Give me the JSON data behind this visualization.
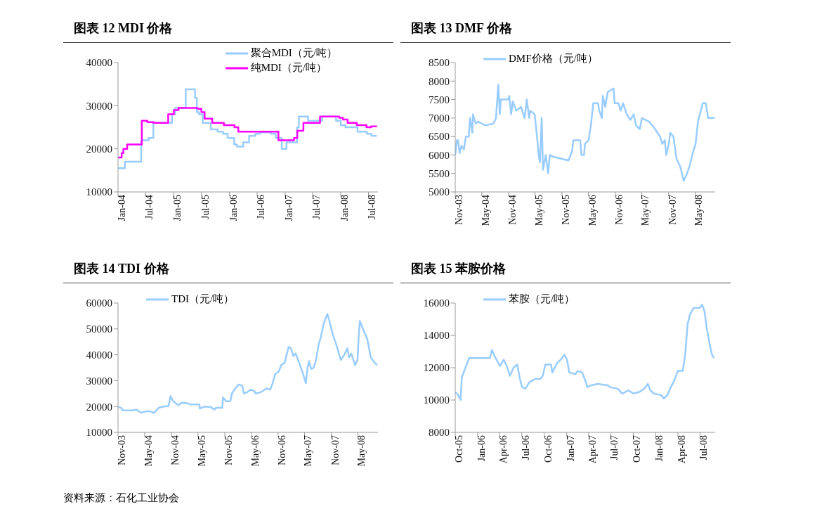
{
  "chart_data": [
    {
      "type": "step",
      "title": "图表 12 MDI 价格",
      "legend": "top right",
      "xlim": [
        "2004-01-01",
        "2008-09-01"
      ],
      "ylim": [
        10000,
        40000
      ],
      "yticks": [
        10000,
        20000,
        30000,
        40000
      ],
      "xticks": [
        {
          "value": "2004-01-01",
          "label": "Jan-04"
        },
        {
          "value": "2004-07-01",
          "label": "Jul-04"
        },
        {
          "value": "2005-01-01",
          "label": "Jan-05"
        },
        {
          "value": "2005-07-01",
          "label": "Jul-05"
        },
        {
          "value": "2006-01-01",
          "label": "Jan-06"
        },
        {
          "value": "2006-07-01",
          "label": "Jul-06"
        },
        {
          "value": "2007-01-01",
          "label": "Jan-07"
        },
        {
          "value": "2007-07-01",
          "label": "Jul-07"
        },
        {
          "value": "2008-01-01",
          "label": "Jan-08"
        },
        {
          "value": "2008-07-01",
          "label": "Jul-08"
        }
      ],
      "series": [
        {
          "name": "聚合MDI（元/吨）",
          "color": "#99ccff",
          "x": [
            "2004-01-01",
            "2004-02-15",
            "2004-06-01",
            "2004-07-20",
            "2004-08-20",
            "2004-12-20",
            "2005-01-10",
            "2005-03-20",
            "2005-05-20",
            "2005-06-01",
            "2005-06-15",
            "2005-07-10",
            "2005-09-01",
            "2005-10-15",
            "2005-11-20",
            "2005-12-20",
            "2006-02-01",
            "2006-02-20",
            "2006-04-01",
            "2006-05-10",
            "2006-06-20",
            "2006-07-20",
            "2006-10-01",
            "2006-11-01",
            "2006-12-10",
            "2007-01-10",
            "2007-03-20",
            "2007-04-01",
            "2007-06-01",
            "2007-09-01",
            "2007-12-01",
            "2008-01-01",
            "2008-02-01",
            "2008-04-20",
            "2008-06-20",
            "2008-07-20",
            "2008-08-25"
          ],
          "values": [
            15500,
            17000,
            22000,
            22500,
            26000,
            28000,
            29500,
            33800,
            31800,
            28500,
            28000,
            26000,
            24500,
            24000,
            23500,
            22500,
            21000,
            20500,
            21500,
            23000,
            23500,
            23800,
            23500,
            22500,
            20000,
            21500,
            25000,
            27500,
            26500,
            27500,
            26500,
            25500,
            25000,
            24000,
            23500,
            23000,
            23000
          ]
        },
        {
          "name": "纯MDI（元/吨）",
          "color": "#ff00ff",
          "x": [
            "2004-01-01",
            "2004-01-25",
            "2004-02-05",
            "2004-03-01",
            "2004-06-05",
            "2004-07-12",
            "2004-08-20",
            "2004-11-25",
            "2005-01-01",
            "2005-02-01",
            "2005-06-05",
            "2005-07-01",
            "2005-07-22",
            "2005-09-10",
            "2005-11-25",
            "2006-02-03",
            "2006-02-28",
            "2006-11-18",
            "2007-02-28",
            "2007-03-22",
            "2007-05-01",
            "2007-08-18",
            "2007-12-22",
            "2008-01-15",
            "2008-02-15",
            "2008-04-15",
            "2008-06-18",
            "2008-07-18",
            "2008-08-25"
          ],
          "values": [
            18000,
            19000,
            20000,
            21000,
            26500,
            26200,
            26000,
            28000,
            29000,
            29500,
            29300,
            28500,
            27000,
            26000,
            25500,
            25000,
            24000,
            22000,
            22500,
            24200,
            26000,
            27500,
            27200,
            26800,
            26000,
            25500,
            25000,
            25200,
            25200
          ]
        }
      ]
    },
    {
      "type": "line",
      "title": "图表 13 DMF 价格",
      "legend": "top left",
      "xlim": [
        "2003-11-01",
        "2008-09-15"
      ],
      "ylim": [
        5000,
        8500
      ],
      "yticks": [
        5000,
        5500,
        6000,
        6500,
        7000,
        7500,
        8000,
        8500
      ],
      "xticks": [
        {
          "value": "2003-11-01",
          "label": "Nov-03"
        },
        {
          "value": "2004-05-01",
          "label": "May-04"
        },
        {
          "value": "2004-11-01",
          "label": "Nov-04"
        },
        {
          "value": "2005-05-01",
          "label": "May-05"
        },
        {
          "value": "2005-11-01",
          "label": "Nov-05"
        },
        {
          "value": "2006-05-01",
          "label": "May-06"
        },
        {
          "value": "2006-11-01",
          "label": "Nov-06"
        },
        {
          "value": "2007-05-01",
          "label": "May-07"
        },
        {
          "value": "2007-11-01",
          "label": "Nov-07"
        },
        {
          "value": "2008-05-01",
          "label": "May-08"
        }
      ],
      "series": [
        {
          "name": "DMF价格（元/吨）",
          "color": "#99ccff",
          "x": [
            "2003-11-01",
            "2003-11-12",
            "2003-11-20",
            "2003-12-01",
            "2003-12-14",
            "2003-12-30",
            "2004-01-13",
            "2004-02-02",
            "2004-02-10",
            "2004-02-26",
            "2004-03-01",
            "2004-03-20",
            "2004-04-06",
            "2004-05-25",
            "2004-07-20",
            "2004-08-06",
            "2004-08-22",
            "2004-09-01",
            "2004-09-08",
            "2004-10-27",
            "2004-11-05",
            "2004-11-18",
            "2004-11-29",
            "2004-12-23",
            "2005-01-25",
            "2005-02-18",
            "2005-03-05",
            "2005-03-21",
            "2005-03-29",
            "2005-04-28",
            "2005-05-14",
            "2005-05-25",
            "2005-06-03",
            "2005-06-15",
            "2005-06-24",
            "2005-07-13",
            "2005-07-29",
            "2005-08-10",
            "2005-09-01",
            "2005-10-28",
            "2005-12-15",
            "2006-01-09",
            "2006-01-18",
            "2006-03-06",
            "2006-03-14",
            "2006-04-01",
            "2006-04-08",
            "2006-05-02",
            "2006-05-18",
            "2006-06-03",
            "2006-07-06",
            "2006-07-14",
            "2006-08-01",
            "2006-08-08",
            "2006-08-24",
            "2006-09-10",
            "2006-10-20",
            "2006-10-28",
            "2006-11-22",
            "2006-12-08",
            "2006-12-24",
            "2007-01-19",
            "2007-02-12",
            "2007-03-07",
            "2007-03-23",
            "2007-04-17",
            "2007-05-03",
            "2007-06-21",
            "2007-07-23",
            "2007-09-03",
            "2007-09-19",
            "2007-10-06",
            "2007-10-16",
            "2007-11-03",
            "2007-11-12",
            "2007-12-04",
            "2007-12-25",
            "2008-01-19",
            "2008-02-12",
            "2008-03-07",
            "2008-03-24",
            "2008-04-18",
            "2008-05-04",
            "2008-05-20",
            "2008-06-22",
            "2008-07-13",
            "2008-07-29",
            "2008-09-12"
          ],
          "values": [
            6000,
            6400,
            6400,
            6050,
            6250,
            6150,
            6500,
            6500,
            7000,
            6600,
            7100,
            6850,
            6900,
            6800,
            6850,
            7000,
            7900,
            7100,
            7500,
            7500,
            7600,
            7100,
            7450,
            7200,
            7300,
            7000,
            7500,
            7000,
            7200,
            7100,
            6500,
            6000,
            5800,
            7000,
            5600,
            6000,
            5500,
            6000,
            5950,
            5900,
            5850,
            6100,
            6400,
            6400,
            6000,
            6000,
            6300,
            6400,
            6800,
            7400,
            7400,
            7200,
            7000,
            7600,
            7300,
            7700,
            7800,
            7400,
            7400,
            7200,
            7400,
            7100,
            6950,
            7100,
            6800,
            6700,
            7000,
            6900,
            6750,
            6500,
            6300,
            6400,
            6000,
            6300,
            6600,
            6500,
            5900,
            5700,
            5300,
            5500,
            5700,
            6100,
            6300,
            6900,
            7400,
            7400,
            7000,
            7000
          ]
        }
      ]
    },
    {
      "type": "line",
      "title": "图表 14 TDI 价格",
      "legend": "top left",
      "xlim": [
        "2003-11-01",
        "2008-09-15"
      ],
      "ylim": [
        10000,
        60000
      ],
      "yticks": [
        10000,
        20000,
        30000,
        40000,
        50000,
        60000
      ],
      "xticks": [
        {
          "value": "2003-11-01",
          "label": "Nov-03"
        },
        {
          "value": "2004-05-01",
          "label": "May-04"
        },
        {
          "value": "2004-11-01",
          "label": "Nov-04"
        },
        {
          "value": "2005-05-01",
          "label": "May-05"
        },
        {
          "value": "2005-11-01",
          "label": "Nov-05"
        },
        {
          "value": "2006-05-01",
          "label": "May-06"
        },
        {
          "value": "2006-11-01",
          "label": "Nov-06"
        },
        {
          "value": "2007-05-01",
          "label": "May-07"
        },
        {
          "value": "2007-11-01",
          "label": "Nov-07"
        },
        {
          "value": "2008-05-01",
          "label": "May-08"
        }
      ],
      "annotations": [
        "资料来源：石化工业协会"
      ],
      "series": [
        {
          "name": "TDI（元/吨）",
          "color": "#99ccff",
          "x": [
            "2003-11-01",
            "2003-11-22",
            "2003-12-04",
            "2004-02-05",
            "2004-03-05",
            "2004-04-08",
            "2004-05-14",
            "2004-06-17",
            "2004-07-03",
            "2004-08-06",
            "2004-09-09",
            "2004-10-12",
            "2004-10-25",
            "2004-11-14",
            "2004-12-17",
            "2005-01-12",
            "2005-02-22",
            "2005-03-09",
            "2005-05-11",
            "2005-05-14",
            "2005-06-17",
            "2005-07-28",
            "2005-08-22",
            "2005-09-01",
            "2005-10-15",
            "2005-10-20",
            "2005-11-11",
            "2005-12-09",
            "2005-12-20",
            "2006-01-12",
            "2006-02-06",
            "2006-03-01",
            "2006-03-12",
            "2006-04-03",
            "2006-04-28",
            "2006-05-22",
            "2006-06-01",
            "2006-07-04",
            "2006-08-14",
            "2006-09-08",
            "2006-09-25",
            "2006-10-11",
            "2006-11-06",
            "2006-11-22",
            "2006-12-17",
            "2007-01-12",
            "2007-01-28",
            "2007-02-14",
            "2007-03-01",
            "2007-03-25",
            "2007-04-19",
            "2007-05-10",
            "2007-05-22",
            "2007-06-01",
            "2007-06-16",
            "2007-07-03",
            "2007-07-19",
            "2007-08-06",
            "2007-08-22",
            "2007-09-09",
            "2007-10-04",
            "2007-10-19",
            "2007-11-10",
            "2007-12-10",
            "2008-01-04",
            "2008-01-28",
            "2008-02-19",
            "2008-03-01",
            "2008-03-16",
            "2008-04-12",
            "2008-04-28",
            "2008-05-06",
            "2008-05-14",
            "2008-06-01",
            "2008-07-04",
            "2008-07-28",
            "2008-08-22",
            "2008-09-10"
          ],
          "values": [
            19800,
            19500,
            18500,
            18500,
            18800,
            17600,
            18200,
            18000,
            17500,
            19500,
            20000,
            20200,
            24000,
            22000,
            20500,
            21500,
            21200,
            20800,
            20800,
            19200,
            20000,
            19800,
            18800,
            19500,
            19500,
            23500,
            22000,
            22000,
            25000,
            27000,
            28500,
            28000,
            25000,
            25500,
            26500,
            26000,
            25000,
            25500,
            27000,
            26500,
            29000,
            32500,
            33500,
            36000,
            37000,
            43000,
            42500,
            39500,
            40500,
            37000,
            33000,
            29000,
            35000,
            37500,
            34500,
            35000,
            38000,
            44000,
            47000,
            52000,
            55800,
            53000,
            48000,
            43000,
            38000,
            40000,
            42500,
            39000,
            40500,
            36000,
            38000,
            47000,
            53000,
            50500,
            46000,
            39000,
            37000,
            36000
          ]
        }
      ]
    },
    {
      "type": "line",
      "title": "图表 15 苯胺价格",
      "legend": "top left",
      "xlim": [
        "2005-10-01",
        "2008-09-01"
      ],
      "ylim": [
        8000,
        16000
      ],
      "yticks": [
        8000,
        10000,
        12000,
        14000,
        16000
      ],
      "xticks": [
        {
          "value": "2005-10-01",
          "label": "Oct-05"
        },
        {
          "value": "2006-01-01",
          "label": "Jan-06"
        },
        {
          "value": "2006-04-01",
          "label": "Apr-06"
        },
        {
          "value": "2006-07-01",
          "label": "Jul-06"
        },
        {
          "value": "2006-10-01",
          "label": "Oct-06"
        },
        {
          "value": "2007-01-01",
          "label": "Jan-07"
        },
        {
          "value": "2007-04-01",
          "label": "Apr-07"
        },
        {
          "value": "2007-07-01",
          "label": "Jul-07"
        },
        {
          "value": "2007-10-01",
          "label": "Oct-07"
        },
        {
          "value": "2008-01-01",
          "label": "Jan-08"
        },
        {
          "value": "2008-04-01",
          "label": "Apr-08"
        },
        {
          "value": "2008-07-01",
          "label": "Jul-08"
        }
      ],
      "series": [
        {
          "name": "苯胺（元/吨）",
          "color": "#99ccff",
          "x": [
            "2005-10-01",
            "2005-10-13",
            "2005-10-23",
            "2005-10-28",
            "2005-11-12",
            "2005-11-27",
            "2005-12-16",
            "2006-02-20",
            "2006-03-01",
            "2006-03-09",
            "2006-03-19",
            "2006-04-03",
            "2006-04-18",
            "2006-05-03",
            "2006-05-13",
            "2006-05-28",
            "2006-06-12",
            "2006-06-22",
            "2006-07-02",
            "2006-07-16",
            "2006-08-01",
            "2006-08-25",
            "2006-09-15",
            "2006-09-25",
            "2006-10-06",
            "2006-10-29",
            "2006-11-03",
            "2006-11-23",
            "2006-12-08",
            "2006-12-23",
            "2007-01-02",
            "2007-01-12",
            "2007-02-06",
            "2007-02-15",
            "2007-03-06",
            "2007-03-21",
            "2007-03-26",
            "2007-04-10",
            "2007-05-09",
            "2007-06-19",
            "2007-06-28",
            "2007-07-29",
            "2007-08-17",
            "2007-09-12",
            "2007-10-01",
            "2007-10-26",
            "2007-11-15",
            "2007-11-30",
            "2007-12-10",
            "2007-12-25",
            "2008-01-24",
            "2008-02-03",
            "2008-02-18",
            "2008-03-03",
            "2008-03-17",
            "2008-04-01",
            "2008-04-21",
            "2008-05-01",
            "2008-05-11",
            "2008-05-21",
            "2008-06-05",
            "2008-06-30",
            "2008-07-10",
            "2008-07-19",
            "2008-07-28",
            "2008-08-09",
            "2008-08-19",
            "2008-08-28"
          ],
          "values": [
            10500,
            10300,
            10000,
            11400,
            12000,
            12600,
            12600,
            12600,
            13100,
            12800,
            12500,
            12100,
            12500,
            12000,
            11500,
            12000,
            12200,
            11400,
            10800,
            10700,
            11100,
            11300,
            11300,
            11500,
            12200,
            12200,
            11700,
            12300,
            12500,
            12800,
            12500,
            11700,
            11600,
            11800,
            11700,
            11100,
            10800,
            10900,
            11000,
            10900,
            10800,
            10700,
            10400,
            10600,
            10400,
            10500,
            10700,
            11000,
            10600,
            10400,
            10300,
            10100,
            10300,
            10800,
            11200,
            11800,
            11800,
            12800,
            14700,
            15300,
            15700,
            15700,
            15900,
            15500,
            14500,
            13500,
            12800,
            12600
          ]
        }
      ]
    }
  ]
}
